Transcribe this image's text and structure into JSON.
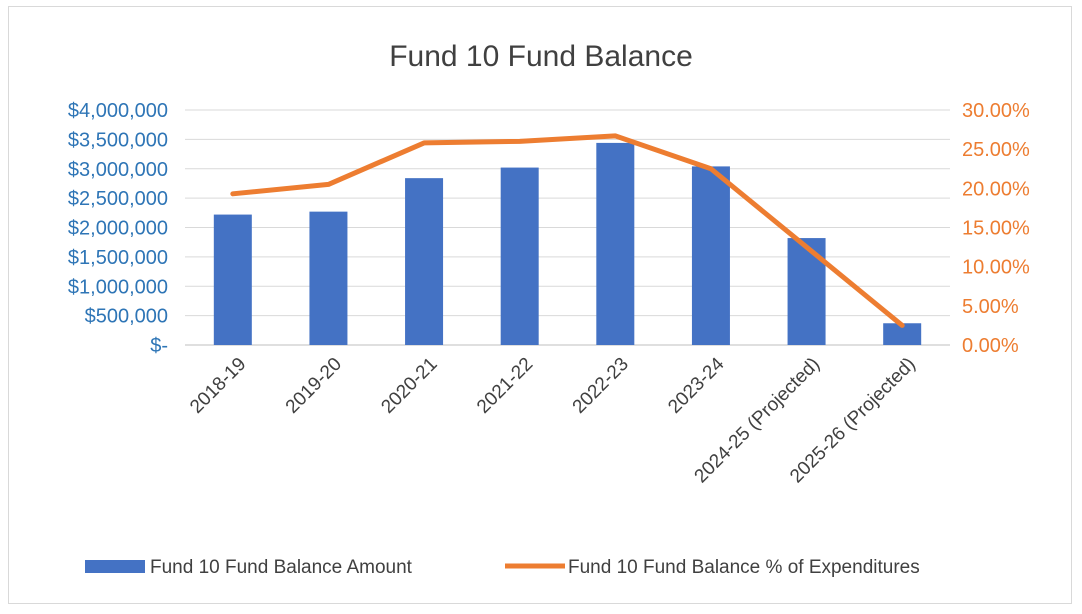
{
  "chart_data": {
    "type": "bar",
    "title": "Fund 10 Fund Balance",
    "categories": [
      "2018-19",
      "2019-20",
      "2020-21",
      "2021-22",
      "2022-23",
      "2023-24",
      "2024-25 (Projected)",
      "2025-26 (Projected)"
    ],
    "series": [
      {
        "name": "Fund 10 Fund Balance Amount",
        "type": "bar",
        "axis": "left",
        "color": "#4472c4",
        "values": [
          2220000,
          2270000,
          2840000,
          3020000,
          3440000,
          3040000,
          1820000,
          370000
        ]
      },
      {
        "name": "Fund 10 Fund Balance % of Expenditures",
        "type": "line",
        "axis": "right",
        "color": "#ed7d31",
        "values": [
          19.3,
          20.5,
          25.8,
          26.0,
          26.7,
          22.5,
          12.5,
          2.5
        ]
      }
    ],
    "y_left": {
      "ylim": [
        0,
        4000000
      ],
      "ticks": [
        0,
        500000,
        1000000,
        1500000,
        2000000,
        2500000,
        3000000,
        3500000,
        4000000
      ],
      "tick_labels": [
        "$-",
        "$500,000",
        "$1,000,000",
        "$1,500,000",
        "$2,000,000",
        "$2,500,000",
        "$3,000,000",
        "$3,500,000",
        "$4,000,000"
      ],
      "color": "#2e75b6"
    },
    "y_right": {
      "ylim": [
        0,
        30
      ],
      "ticks": [
        0,
        5,
        10,
        15,
        20,
        25,
        30
      ],
      "tick_labels": [
        "0.00%",
        "5.00%",
        "10.00%",
        "15.00%",
        "20.00%",
        "25.00%",
        "30.00%"
      ],
      "color": "#ed7d31"
    },
    "grid": true,
    "legend": "bottom"
  }
}
